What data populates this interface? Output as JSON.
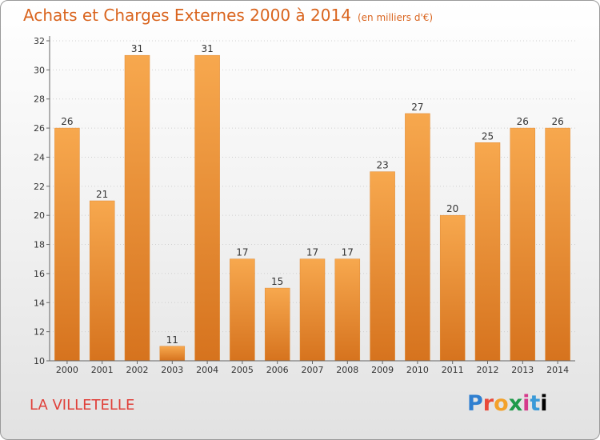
{
  "title": "Achats et Charges Externes 2000 à 2014",
  "unit": "(en milliers d'€)",
  "commune": "LA VILLETELLE",
  "logo": [
    "P",
    "r",
    "o",
    "x",
    "i",
    "t",
    "i"
  ],
  "colors": {
    "bar_light": "#f7a84e",
    "bar_dark": "#d6731e",
    "title": "#d9641e",
    "commune": "#e0403a"
  },
  "chart_data": {
    "type": "bar",
    "title": "Achats et Charges Externes 2000 à 2014",
    "subtitle": "(en milliers d'€)",
    "categories": [
      "2000",
      "2001",
      "2002",
      "2003",
      "2004",
      "2005",
      "2006",
      "2007",
      "2008",
      "2009",
      "2010",
      "2011",
      "2012",
      "2013",
      "2014"
    ],
    "values": [
      26,
      21,
      31,
      11,
      31,
      17,
      15,
      17,
      17,
      23,
      27,
      20,
      25,
      26,
      26
    ],
    "ylim": [
      10,
      32
    ],
    "yticks": [
      10,
      12,
      14,
      16,
      18,
      20,
      22,
      24,
      26,
      28,
      30,
      32
    ],
    "grid": true
  }
}
